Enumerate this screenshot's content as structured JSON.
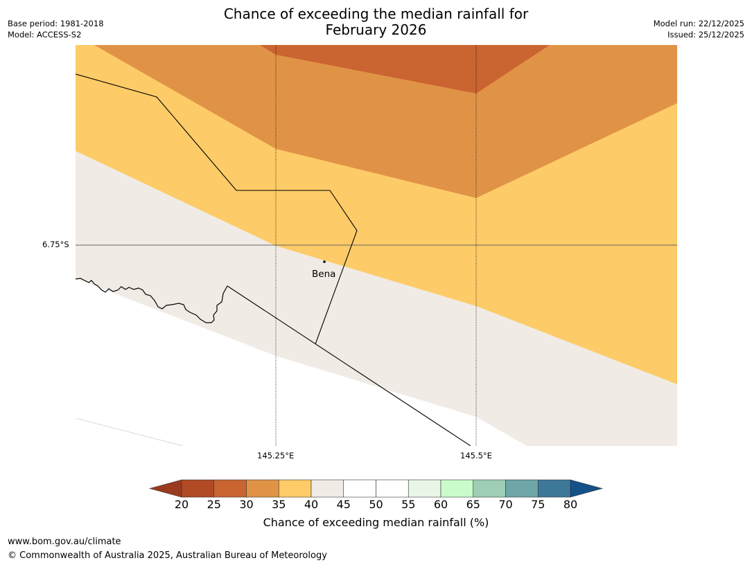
{
  "title": {
    "line1": "Chance of exceeding the median rainfall for",
    "line2": "February 2026"
  },
  "meta_left": {
    "base_period": "Base period: 1981-2018",
    "model": "Model: ACCESS-S2"
  },
  "meta_right": {
    "model_run": "Model run: 22/12/2025",
    "issued": "Issued: 25/12/2025"
  },
  "map": {
    "lat_label": "6.75°S",
    "lon_labels": [
      "145.25°E",
      "145.5°E"
    ],
    "place_label": "Bena"
  },
  "colorbar": {
    "label": "Chance of exceeding median rainfall (%)",
    "ticks": [
      "20",
      "25",
      "30",
      "35",
      "40",
      "45",
      "50",
      "55",
      "60",
      "65",
      "70",
      "75",
      "80"
    ],
    "colors": {
      "below_20": "#9a3a1e",
      "c20_25": "#b04a25",
      "c25_30": "#ca6431",
      "c30_35": "#e09346",
      "c35_40": "#fdcb67",
      "c40_45": "#f0ebe5",
      "c45_50": "#ffffff",
      "c50_55": "#ffffff",
      "c55_60": "#e8f6e8",
      "c60_65": "#c9fcca",
      "c65_70": "#9ecfb6",
      "c70_75": "#6fa6a7",
      "c75_80": "#3e7898",
      "above_80": "#155089"
    }
  },
  "footer": {
    "url": "www.bom.gov.au/climate",
    "copyright": "© Commonwealth of Australia 2025, Australian Bureau of Meteorology"
  }
}
